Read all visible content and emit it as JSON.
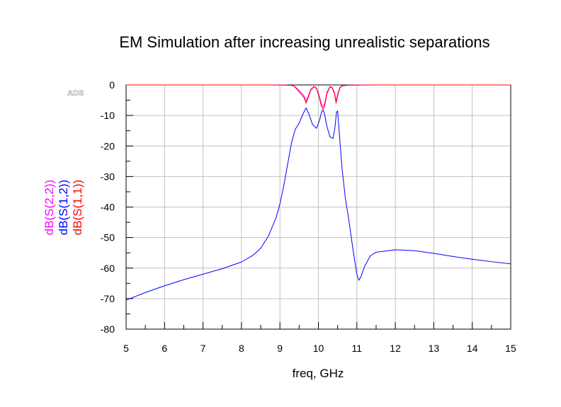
{
  "chart_data": {
    "type": "line",
    "title": "EM Simulation after increasing unrealistic separations",
    "xlabel": "freq, GHz",
    "watermark": "ADS",
    "xlim": [
      5,
      15
    ],
    "ylim": [
      -80,
      0
    ],
    "x_ticks": [
      5,
      6,
      7,
      8,
      9,
      10,
      11,
      12,
      13,
      14,
      15
    ],
    "y_ticks": [
      0,
      -10,
      -20,
      -30,
      -40,
      -50,
      -60,
      -70,
      -80
    ],
    "grid": true,
    "series": [
      {
        "name": "dB(S(2,2))",
        "color": "#ff00ff",
        "x": [
          5,
          8,
          8.6,
          9.2,
          9.35,
          9.45,
          9.55,
          9.62,
          9.68,
          9.74,
          9.8,
          9.88,
          9.95,
          10.02,
          10.08,
          10.12,
          10.16,
          10.22,
          10.3,
          10.36,
          10.42,
          10.46,
          10.5,
          10.56,
          10.62,
          10.8,
          11.5,
          15
        ],
        "values": [
          0,
          0,
          0,
          -0.05,
          -0.2,
          -1.2,
          -2.5,
          -3.5,
          -5.2,
          -3.5,
          -1.5,
          -0.5,
          -1.0,
          -3.5,
          -6.2,
          -7.2,
          -6.2,
          -2.5,
          -0.5,
          -0.8,
          -2.5,
          -5.2,
          -3.0,
          -0.8,
          -0.2,
          -0.05,
          0,
          0
        ]
      },
      {
        "name": "dB(S(1,2))",
        "color": "#0000ff",
        "x": [
          5,
          5.5,
          6,
          6.5,
          7,
          7.5,
          8,
          8.3,
          8.5,
          8.7,
          8.9,
          9.0,
          9.1,
          9.2,
          9.3,
          9.4,
          9.5,
          9.6,
          9.68,
          9.75,
          9.85,
          9.95,
          10.02,
          10.08,
          10.12,
          10.16,
          10.22,
          10.3,
          10.38,
          10.43,
          10.47,
          10.5,
          10.55,
          10.62,
          10.7,
          10.8,
          10.9,
          11.0,
          11.05,
          11.1,
          11.2,
          11.35,
          11.5,
          12,
          12.5,
          13,
          13.5,
          14,
          14.5,
          15
        ],
        "values": [
          -70.5,
          -68,
          -65.8,
          -63.8,
          -62,
          -60.2,
          -58,
          -55.8,
          -53.5,
          -49.5,
          -43.5,
          -39,
          -33,
          -26,
          -19,
          -14.5,
          -12.5,
          -9.5,
          -7.5,
          -9.5,
          -13,
          -14.2,
          -12,
          -9,
          -8.2,
          -9.5,
          -13.5,
          -17,
          -17.5,
          -14,
          -9,
          -8.5,
          -17,
          -28,
          -37,
          -45,
          -54,
          -62,
          -64,
          -63,
          -59.5,
          -56,
          -54.8,
          -54,
          -54.3,
          -55.2,
          -56.2,
          -57.1,
          -57.9,
          -58.6
        ]
      },
      {
        "name": "dB(S(1,1))",
        "color": "#ff0000",
        "x": [
          5,
          8,
          8.6,
          9.2,
          9.35,
          9.45,
          9.55,
          9.62,
          9.68,
          9.74,
          9.8,
          9.88,
          9.95,
          10.02,
          10.08,
          10.12,
          10.16,
          10.22,
          10.3,
          10.36,
          10.42,
          10.46,
          10.5,
          10.56,
          10.62,
          10.8,
          11.5,
          15
        ],
        "values": [
          0,
          0,
          0,
          -0.05,
          -0.25,
          -1.5,
          -3,
          -4,
          -6,
          -4,
          -1.8,
          -0.6,
          -1.2,
          -4,
          -7,
          -8,
          -7,
          -3,
          -0.6,
          -1,
          -3,
          -6,
          -3.5,
          -1,
          -0.3,
          -0.05,
          0,
          0
        ]
      }
    ]
  }
}
